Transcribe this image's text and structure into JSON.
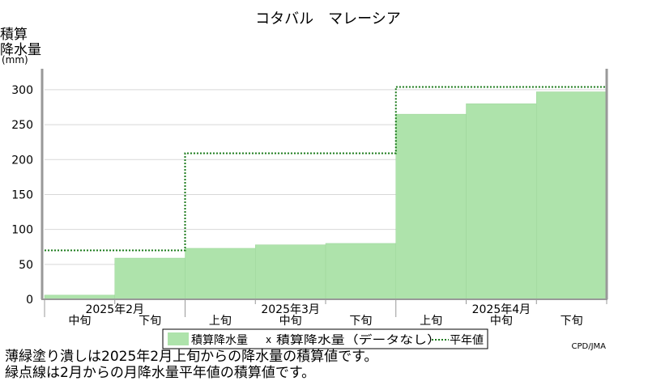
{
  "colors": {
    "bar_fill": "#aee3ab",
    "bar_stroke": "#9cd499",
    "normal_line": "#1a7a1a",
    "grid": "#d8d8d8",
    "axis": "#999999"
  },
  "chart_data": {
    "type": "area",
    "title": "コタバル　マレーシア",
    "ylabel_lines": [
      "積算",
      "降水量",
      "(mm)"
    ],
    "ylim": [
      0,
      330
    ],
    "yticks": [
      0,
      50,
      100,
      150,
      200,
      250,
      300
    ],
    "grid": true,
    "legend_position": "bottom-center",
    "x_dekads": [
      {
        "month": "2025年2月",
        "dekad": "中旬"
      },
      {
        "month": "2025年2月",
        "dekad": "下旬"
      },
      {
        "month": "2025年3月",
        "dekad": "上旬"
      },
      {
        "month": "2025年3月",
        "dekad": "中旬"
      },
      {
        "month": "2025年3月",
        "dekad": "下旬"
      },
      {
        "month": "2025年4月",
        "dekad": "上旬"
      },
      {
        "month": "2025年4月",
        "dekad": "中旬"
      },
      {
        "month": "2025年4月",
        "dekad": "下旬"
      }
    ],
    "x_tick_labels": [
      "中旬",
      "下旬",
      "上旬",
      "中旬",
      "下旬",
      "上旬",
      "中旬",
      "下旬"
    ],
    "month_labels": [
      "2025年2月",
      "2025年3月",
      "2025年4月"
    ],
    "series": [
      {
        "name": "積算降水量",
        "style": "filled-step",
        "values": [
          6,
          59,
          73,
          78,
          80,
          265,
          280,
          297
        ]
      },
      {
        "name": "平年値",
        "style": "dotted-step",
        "values": [
          70,
          70,
          209,
          209,
          209,
          304,
          304,
          304
        ]
      }
    ],
    "legend": {
      "items": [
        "積算降水量",
        "積算降水量（データなし）",
        "平年値"
      ],
      "nodata_marker": "x"
    },
    "credit": "CPD/JMA"
  },
  "notes": [
    "薄緑塗り潰しは2025年2月上旬からの降水量の積算値です。",
    "緑点線は2月からの月降水量平年値の積算値です。"
  ]
}
